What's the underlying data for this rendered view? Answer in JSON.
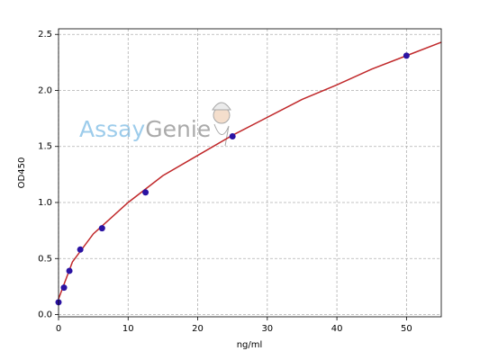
{
  "chart_data": {
    "type": "scatter",
    "xlabel": "ng/ml",
    "ylabel": "OD450",
    "watermark": [
      "Assay",
      "Genie"
    ],
    "x": [
      0,
      0.78,
      1.56,
      3.125,
      6.25,
      12.5,
      25,
      50
    ],
    "values": [
      0.11,
      0.24,
      0.39,
      0.58,
      0.77,
      1.09,
      1.59,
      2.31
    ],
    "color": "#2b13a3",
    "fit": {
      "color": "#c0282a",
      "x": [
        0,
        2,
        5,
        10,
        15,
        20,
        25,
        30,
        35,
        40,
        45,
        50,
        55
      ],
      "values": [
        0.14,
        0.47,
        0.72,
        1.0,
        1.24,
        1.42,
        1.6,
        1.76,
        1.92,
        2.05,
        2.19,
        2.31,
        2.43
      ]
    },
    "xlim": [
      0,
      55
    ],
    "xticks": [
      0,
      10,
      20,
      30,
      40,
      50
    ],
    "ylim": [
      -0.02,
      2.55
    ],
    "yticks": [
      {
        "value": 0,
        "label": "0.0"
      },
      0.5,
      {
        "value": 1,
        "label": "1.0"
      },
      1.5,
      {
        "value": 2,
        "label": "2.0"
      },
      2.5
    ],
    "grid": true
  }
}
